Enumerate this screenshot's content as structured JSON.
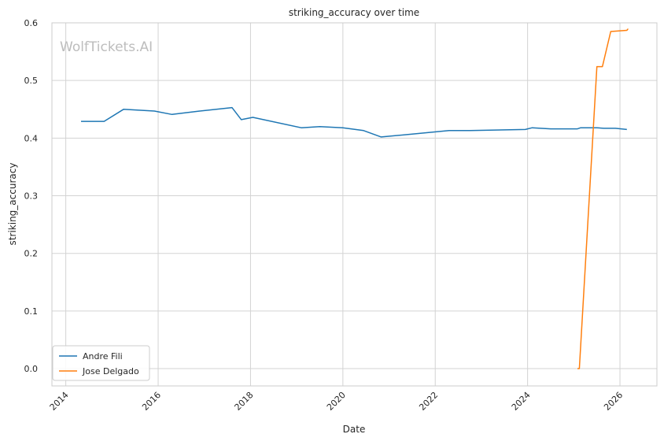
{
  "chart_data": {
    "type": "line",
    "title": "striking_accuracy over time",
    "xlabel": "Date",
    "ylabel": "striking_accuracy",
    "watermark": "WolfTickets.AI",
    "xlim": [
      2013.7,
      2026.8
    ],
    "ylim": [
      -0.03,
      0.6
    ],
    "x_ticks": [
      2014,
      2016,
      2018,
      2020,
      2022,
      2024,
      2026
    ],
    "x_tick_labels": [
      "2014",
      "2016",
      "2018",
      "2020",
      "2022",
      "2024",
      "2026"
    ],
    "y_ticks": [
      0.0,
      0.1,
      0.2,
      0.3,
      0.4,
      0.5,
      0.6
    ],
    "y_tick_labels": [
      "0.0",
      "0.1",
      "0.2",
      "0.3",
      "0.4",
      "0.5",
      "0.6"
    ],
    "grid": true,
    "legend_position": "lower-left",
    "series": [
      {
        "name": "Andre Fili",
        "color": "#1f77b4",
        "x": [
          2014.33,
          2014.83,
          2015.25,
          2015.92,
          2016.3,
          2016.9,
          2017.6,
          2017.8,
          2018.05,
          2019.1,
          2019.5,
          2020.0,
          2020.45,
          2020.83,
          2021.5,
          2022.3,
          2022.75,
          2023.3,
          2023.95,
          2024.1,
          2024.5,
          2025.0,
          2025.08,
          2025.15,
          2025.5,
          2025.65,
          2025.9,
          2026.15
        ],
        "values": [
          0.429,
          0.429,
          0.45,
          0.447,
          0.441,
          0.447,
          0.453,
          0.432,
          0.436,
          0.418,
          0.42,
          0.418,
          0.413,
          0.402,
          0.407,
          0.413,
          0.413,
          0.414,
          0.415,
          0.418,
          0.416,
          0.416,
          0.416,
          0.418,
          0.418,
          0.417,
          0.417,
          0.415
        ]
      },
      {
        "name": "Jose Delgado",
        "color": "#ff7f0e",
        "x": [
          2025.08,
          2025.12,
          2025.5,
          2025.55,
          2025.62,
          2025.8,
          2026.15,
          2026.17,
          2026.18
        ],
        "values": [
          0.0,
          0.0,
          0.524,
          0.524,
          0.524,
          0.585,
          0.587,
          0.589,
          0.589
        ]
      }
    ]
  }
}
